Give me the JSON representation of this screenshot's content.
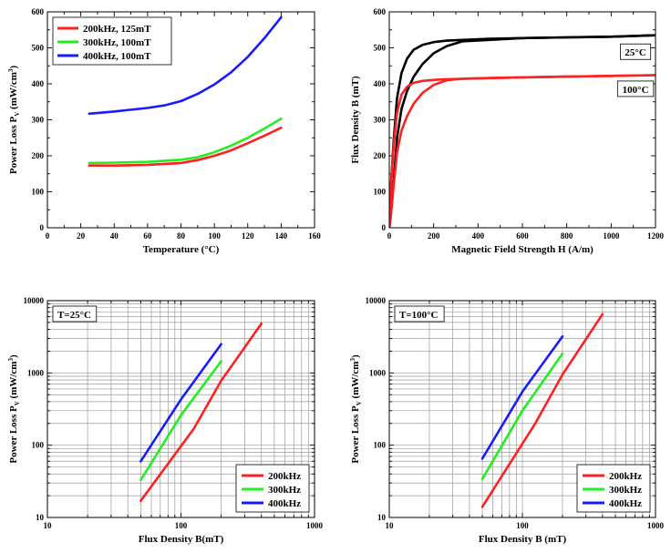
{
  "chart_data": [
    {
      "id": "c1",
      "type": "line",
      "xscale": "linear",
      "yscale": "linear",
      "xlim": [
        0,
        160
      ],
      "ylim": [
        0,
        600
      ],
      "xticks": [
        0,
        20,
        40,
        60,
        80,
        100,
        120,
        140,
        160
      ],
      "yticks": [
        0,
        100,
        200,
        300,
        400,
        500,
        600
      ],
      "xlabel": "Temperature (°C)",
      "ylabel": "Power Loss P",
      "ylabel_sub": "V",
      "ylabel_unit": " (mW/cm",
      "ylabel_sup": "3",
      "ylabel_end": ")",
      "grid": false,
      "legend": "top-left",
      "series": [
        {
          "name": "200kHz, 125mT",
          "color": "#ff2020",
          "x": [
            25,
            40,
            60,
            80,
            90,
            100,
            110,
            120,
            130,
            140
          ],
          "y": [
            173,
            173,
            175,
            180,
            188,
            200,
            215,
            235,
            256,
            278
          ]
        },
        {
          "name": "300kHz, 100mT",
          "color": "#22ee22",
          "x": [
            25,
            40,
            60,
            80,
            90,
            100,
            110,
            120,
            130,
            140
          ],
          "y": [
            180,
            181,
            183,
            189,
            196,
            210,
            228,
            250,
            276,
            303
          ]
        },
        {
          "name": "400kHz, 100mT",
          "color": "#1a1aff",
          "x": [
            25,
            40,
            60,
            70,
            80,
            90,
            100,
            110,
            120,
            130,
            140
          ],
          "y": [
            317,
            323,
            333,
            340,
            352,
            372,
            398,
            432,
            475,
            527,
            585
          ]
        }
      ]
    },
    {
      "id": "c2",
      "type": "line",
      "xscale": "linear",
      "yscale": "linear",
      "xlim": [
        0,
        1200
      ],
      "ylim": [
        0,
        600
      ],
      "xticks": [
        0,
        200,
        400,
        600,
        800,
        1000,
        1200
      ],
      "yticks": [
        0,
        100,
        200,
        300,
        400,
        500,
        600
      ],
      "xlabel": "Magnetic Field Strength H (A/m)",
      "ylabel": "Flux Density B (mT)",
      "grid": false,
      "annotations": [
        {
          "text": "25°C",
          "x": 1110,
          "y": 488
        },
        {
          "text": "100°C",
          "x": 1110,
          "y": 385
        }
      ],
      "series": [
        {
          "name": "25°C",
          "color": "#000000",
          "loops": [
            {
              "x": [
                0,
                8,
                20,
                35,
                55,
                80,
                110,
                150,
                200,
                260,
                330,
                450,
                600,
                800,
                1000,
                1200
              ],
              "y": [
                0,
                120,
                245,
                360,
                430,
                470,
                495,
                508,
                516,
                520,
                522,
                525,
                527,
                529,
                531,
                535
              ]
            },
            {
              "x": [
                0,
                8,
                20,
                35,
                55,
                80,
                110,
                150,
                200,
                260,
                330,
                450,
                600,
                800,
                1000,
                1200
              ],
              "y": [
                0,
                40,
                130,
                250,
                330,
                380,
                420,
                455,
                485,
                505,
                518,
                522,
                527,
                529,
                531,
                535
              ]
            }
          ]
        },
        {
          "name": "100°C",
          "color": "#ff2020",
          "loops": [
            {
              "x": [
                0,
                8,
                20,
                35,
                55,
                80,
                110,
                150,
                200,
                260,
                330,
                450,
                600,
                800,
                1000,
                1200
              ],
              "y": [
                0,
                120,
                230,
                320,
                370,
                392,
                403,
                408,
                411,
                413,
                414,
                416,
                418,
                420,
                422,
                424
              ]
            },
            {
              "x": [
                0,
                8,
                20,
                35,
                55,
                80,
                110,
                150,
                200,
                260,
                330,
                450,
                600,
                800,
                1000,
                1200
              ],
              "y": [
                0,
                40,
                120,
                210,
                270,
                310,
                345,
                375,
                397,
                410,
                414,
                416,
                418,
                420,
                422,
                424
              ]
            }
          ]
        }
      ]
    },
    {
      "id": "c3",
      "type": "line",
      "xscale": "log",
      "yscale": "log",
      "xlim": [
        10,
        1000
      ],
      "ylim": [
        10,
        10000
      ],
      "xticks": [
        10,
        100,
        1000
      ],
      "yticks": [
        10,
        100,
        1000,
        10000
      ],
      "xlabel": "Flux Density B(mT)",
      "ylabel": "Power Loss P",
      "ylabel_sub": "V",
      "ylabel_unit": " (mW/cm",
      "ylabel_sup": "3",
      "ylabel_end": ")",
      "grid": true,
      "legend": "bottom-right",
      "annotations": [
        {
          "text": "T=25°C",
          "pos": "top-left"
        }
      ],
      "series": [
        {
          "name": "200kHz",
          "color": "#ff2020",
          "x": [
            50,
            125,
            200,
            400
          ],
          "y": [
            17,
            170,
            780,
            4800
          ]
        },
        {
          "name": "300kHz",
          "color": "#22ee22",
          "x": [
            50,
            100,
            200
          ],
          "y": [
            33,
            260,
            1450
          ]
        },
        {
          "name": "400kHz",
          "color": "#1a1aff",
          "x": [
            50,
            100,
            200
          ],
          "y": [
            60,
            430,
            2500
          ]
        }
      ]
    },
    {
      "id": "c4",
      "type": "line",
      "xscale": "log",
      "yscale": "log",
      "xlim": [
        10,
        1000
      ],
      "ylim": [
        10,
        10000
      ],
      "xticks": [
        10,
        100,
        1000
      ],
      "yticks": [
        10,
        100,
        1000,
        10000
      ],
      "xlabel": "Flux Density B (mT)",
      "ylabel": "Power Loss P",
      "ylabel_sub": "V",
      "ylabel_unit": " (mW/cm",
      "ylabel_sup": "3",
      "ylabel_end": ")",
      "grid": true,
      "legend": "bottom-right",
      "annotations": [
        {
          "text": "T=100°C",
          "pos": "top-left"
        }
      ],
      "series": [
        {
          "name": "200kHz",
          "color": "#ff2020",
          "x": [
            50,
            125,
            200,
            400
          ],
          "y": [
            14,
            200,
            950,
            6500
          ]
        },
        {
          "name": "300kHz",
          "color": "#22ee22",
          "x": [
            50,
            100,
            200
          ],
          "y": [
            34,
            300,
            1850
          ]
        },
        {
          "name": "400kHz",
          "color": "#1a1aff",
          "x": [
            50,
            100,
            200
          ],
          "y": [
            65,
            550,
            3200
          ]
        }
      ]
    }
  ]
}
